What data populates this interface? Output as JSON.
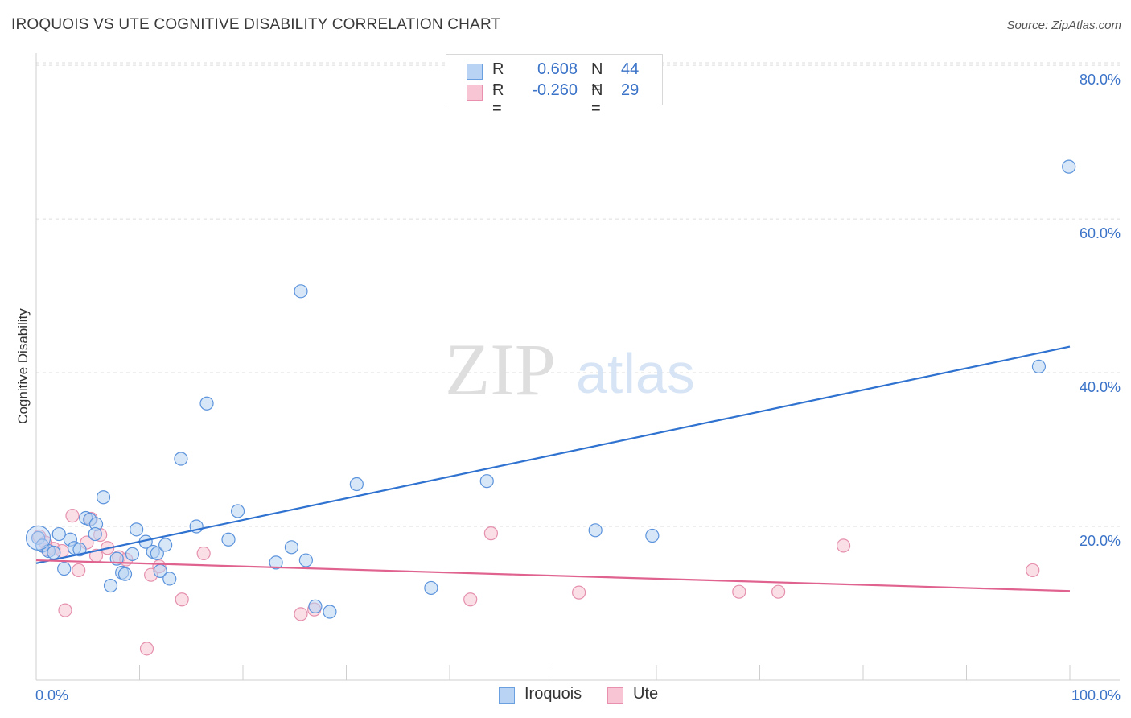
{
  "title": "IROQUOIS VS UTE COGNITIVE DISABILITY CORRELATION CHART",
  "source": "Source: ZipAtlas.com",
  "watermark": {
    "zip": "ZIP",
    "atlas": "atlas"
  },
  "legend_stats": [
    {
      "r_label": "R =",
      "r_value": "0.608",
      "n_label": "N =",
      "n_value": "44",
      "fill": "#b8d3f3",
      "stroke": "#6a9fe0"
    },
    {
      "r_label": "R =",
      "r_value": "-0.260",
      "n_label": "N =",
      "n_value": "29",
      "fill": "#f8c5d4",
      "stroke": "#e890ad"
    }
  ],
  "colors": {
    "iroquois_fill": "#b8d3f3",
    "iroquois_stroke": "#5b93dc",
    "iroquois_line": "#2f72d0",
    "ute_fill": "#f8c5d4",
    "ute_stroke": "#e590ad",
    "ute_line": "#e0628f",
    "axis_label": "#3b73c8",
    "grid": "#dcdcdc"
  },
  "chart_data": {
    "type": "scatter",
    "title": "IROQUOIS VS UTE COGNITIVE DISABILITY CORRELATION CHART",
    "xlabel": "",
    "ylabel": "Cognitive Disability",
    "xlim": [
      0,
      100
    ],
    "ylim": [
      0,
      82
    ],
    "x_tick_labels": [
      "0.0%",
      "100.0%"
    ],
    "y_ticks": [
      20,
      40,
      60,
      80
    ],
    "y_tick_labels": [
      "20.0%",
      "40.0%",
      "60.0%",
      "80.0%"
    ],
    "grid": true,
    "series": [
      {
        "name": "Iroquois",
        "r": 0.608,
        "n": 44,
        "trend": {
          "x0": 0,
          "y0": 15.2,
          "x1": 100,
          "y1": 43.4
        },
        "points": [
          [
            0.2,
            18.5
          ],
          [
            0.6,
            17.5
          ],
          [
            1.2,
            16.8
          ],
          [
            1.7,
            16.6
          ],
          [
            2.2,
            19.0
          ],
          [
            2.7,
            14.5
          ],
          [
            3.3,
            18.3
          ],
          [
            3.7,
            17.2
          ],
          [
            4.2,
            17.0
          ],
          [
            4.8,
            21.1
          ],
          [
            5.2,
            20.9
          ],
          [
            5.8,
            20.3
          ],
          [
            5.7,
            19.0
          ],
          [
            6.5,
            23.8
          ],
          [
            7.2,
            12.3
          ],
          [
            7.8,
            15.8
          ],
          [
            8.3,
            14.0
          ],
          [
            8.6,
            13.8
          ],
          [
            9.3,
            16.4
          ],
          [
            9.7,
            19.6
          ],
          [
            10.6,
            18.0
          ],
          [
            11.3,
            16.7
          ],
          [
            11.7,
            16.5
          ],
          [
            12.0,
            14.2
          ],
          [
            12.5,
            17.6
          ],
          [
            12.9,
            13.2
          ],
          [
            14.0,
            28.8
          ],
          [
            15.5,
            20.0
          ],
          [
            16.5,
            36.0
          ],
          [
            18.6,
            18.3
          ],
          [
            19.5,
            22.0
          ],
          [
            23.2,
            15.3
          ],
          [
            24.7,
            17.3
          ],
          [
            25.6,
            50.6
          ],
          [
            26.1,
            15.6
          ],
          [
            27.0,
            9.6
          ],
          [
            28.4,
            8.9
          ],
          [
            31.0,
            25.5
          ],
          [
            38.2,
            12.0
          ],
          [
            43.6,
            25.9
          ],
          [
            54.1,
            19.5
          ],
          [
            59.6,
            18.8
          ],
          [
            97.0,
            40.8
          ],
          [
            99.9,
            66.8
          ]
        ]
      },
      {
        "name": "Ute",
        "r": -0.26,
        "n": 29,
        "trend": {
          "x0": 0,
          "y0": 15.6,
          "x1": 100,
          "y1": 11.6
        },
        "points": [
          [
            0.3,
            18.7
          ],
          [
            1.1,
            17.0
          ],
          [
            1.7,
            17.1
          ],
          [
            2.5,
            16.8
          ],
          [
            2.8,
            9.1
          ],
          [
            3.5,
            21.4
          ],
          [
            4.1,
            14.3
          ],
          [
            4.9,
            17.9
          ],
          [
            5.3,
            21.0
          ],
          [
            5.8,
            16.2
          ],
          [
            6.2,
            18.9
          ],
          [
            6.9,
            17.2
          ],
          [
            8.0,
            16.0
          ],
          [
            8.7,
            15.7
          ],
          [
            10.7,
            4.1
          ],
          [
            11.1,
            13.7
          ],
          [
            11.9,
            14.8
          ],
          [
            14.1,
            10.5
          ],
          [
            16.2,
            16.5
          ],
          [
            25.6,
            8.6
          ],
          [
            26.9,
            9.2
          ],
          [
            42.0,
            10.5
          ],
          [
            44.0,
            19.1
          ],
          [
            52.5,
            11.4
          ],
          [
            68.0,
            11.5
          ],
          [
            71.8,
            11.5
          ],
          [
            78.1,
            17.5
          ],
          [
            96.4,
            14.3
          ],
          [
            0.9,
            17.9
          ]
        ]
      }
    ]
  }
}
